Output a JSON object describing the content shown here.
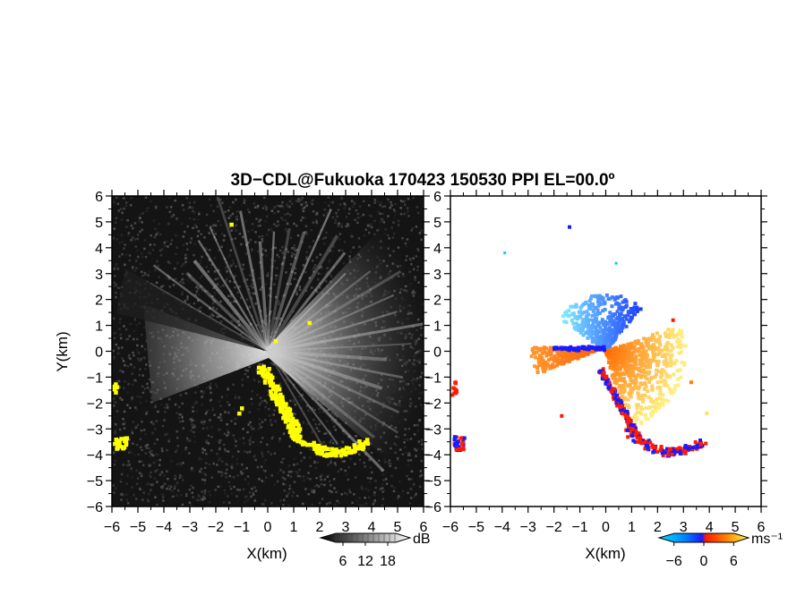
{
  "title": "3D−CDL@Fukuoka 170423 150530 PPI EL=00.0º",
  "colors": {
    "echo_yellow": "#ffff00",
    "velocity_cyan": "#00ccff",
    "velocity_blue": "#1a1aff",
    "velocity_red": "#ff1a00",
    "velocity_orange": "#ff8000",
    "velocity_yellow": "#ffe066",
    "plot_black": "#141414"
  },
  "chart_data": [
    {
      "type": "heatmap",
      "panel": "left",
      "quantity": "backscatter intensity",
      "xlabel": "X(km)",
      "ylabel": "Y(km)",
      "xlim": [
        -6,
        6
      ],
      "ylim": [
        -6,
        6
      ],
      "x_ticks": [
        "−6",
        "−5",
        "−4",
        "−3",
        "−2",
        "−1",
        "0",
        "1",
        "2",
        "3",
        "4",
        "5",
        "6"
      ],
      "y_ticks": [
        "6",
        "5",
        "4",
        "3",
        "2",
        "1",
        "0",
        "−1",
        "−2",
        "−3",
        "−4",
        "−5",
        "−6"
      ],
      "colorbar": {
        "unit": "dB",
        "ticks": [
          "6",
          "12",
          "18"
        ],
        "range": [
          0,
          24
        ],
        "colormap": "gray"
      }
    },
    {
      "type": "heatmap",
      "panel": "right",
      "quantity": "Doppler velocity",
      "xlabel": "X(km)",
      "xlim": [
        -6,
        6
      ],
      "ylim": [
        -6,
        6
      ],
      "x_ticks": [
        "−6",
        "−5",
        "−4",
        "−3",
        "−2",
        "−1",
        "0",
        "1",
        "2",
        "3",
        "4",
        "5",
        "6"
      ],
      "y_ticks": [
        "6",
        "5",
        "4",
        "3",
        "2",
        "1",
        "0",
        "−1",
        "−2",
        "−3",
        "−4",
        "−5",
        "−6"
      ],
      "colorbar": {
        "unit": "ms⁻¹",
        "ticks": [
          "−6",
          "0",
          "6"
        ],
        "range": [
          -9,
          9
        ],
        "colormap": "cyan-blue-red-yellow"
      }
    }
  ]
}
